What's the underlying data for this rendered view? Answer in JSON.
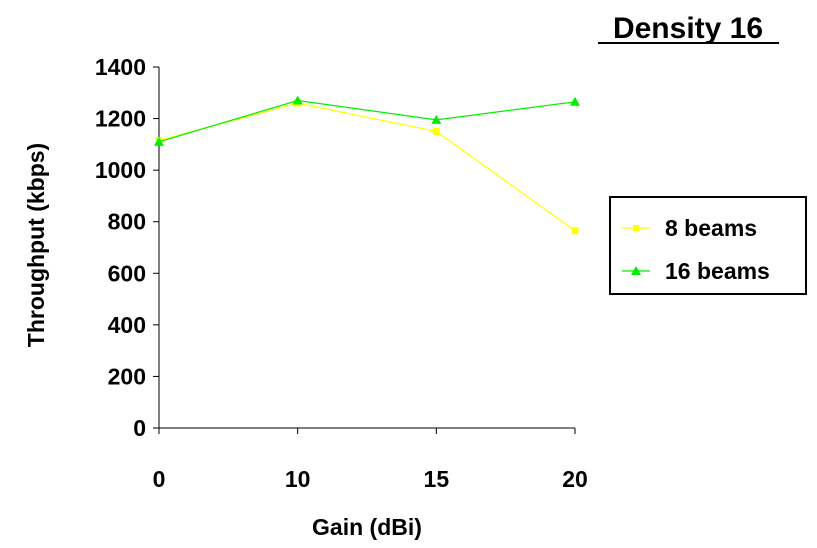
{
  "chart_data": {
    "type": "line",
    "title": "Density 16",
    "xlabel": "Gain (dBi)",
    "ylabel": "Throughput (kbps)",
    "categories": [
      "0",
      "10",
      "15",
      "20"
    ],
    "ylim": [
      0,
      1400
    ],
    "yticks": [
      0,
      200,
      400,
      600,
      800,
      1000,
      1200,
      1400
    ],
    "grid": false,
    "legend": "right",
    "series": [
      {
        "name": "8 beams",
        "values": [
          1115,
          1260,
          1150,
          765
        ],
        "color": "#ffff00",
        "marker": "square"
      },
      {
        "name": "16 beams",
        "values": [
          1110,
          1270,
          1195,
          1265
        ],
        "color": "#00ee00",
        "marker": "triangle"
      }
    ]
  }
}
